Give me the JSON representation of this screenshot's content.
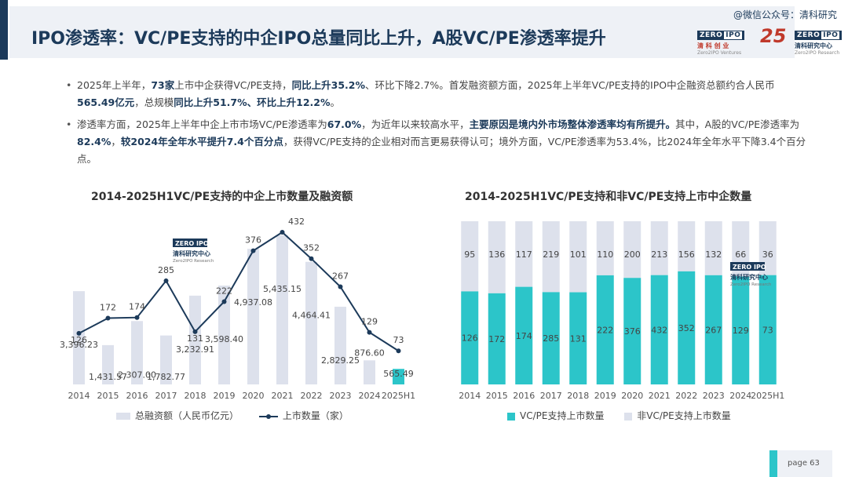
{
  "header": {
    "title": "IPO渗透率：VC/PE支持的中企IPO总量同比上升，A股VC/PE渗透率提升",
    "watermark": "@微信公众号：清科研究",
    "logo1_brand": "ZERO",
    "logo1_ipo": "IPO",
    "logo1_cn": "清 科 创 业",
    "logo1_en": "Zero2IPO Ventures",
    "logo_25": "25",
    "logo2_brand": "ZERO",
    "logo2_ipo": "IPO",
    "logo2_cn": "清科研究中心",
    "logo2_en": "Zero2IPO Research"
  },
  "bullets": [
    {
      "segments": [
        {
          "t": "2025年上半年，",
          "b": false
        },
        {
          "t": "73家",
          "b": true
        },
        {
          "t": "上市中企获得VC/PE支持，",
          "b": false
        },
        {
          "t": "同比上升35.2%",
          "b": true
        },
        {
          "t": "、环比下降2.7%。首发融资额方面，2025年上半年VC/PE支持的IPO中企融资总额约合人民币",
          "b": false
        },
        {
          "t": "565.49亿元",
          "b": true
        },
        {
          "t": "，总规模",
          "b": false
        },
        {
          "t": "同比上升51.7%、环比上升12.2%",
          "b": true
        },
        {
          "t": "。",
          "b": false
        }
      ]
    },
    {
      "segments": [
        {
          "t": "渗透率方面，2025年上半年中企上市市场VC/PE渗透率为",
          "b": false
        },
        {
          "t": "67.0%",
          "b": true
        },
        {
          "t": "，为近年以来较高水平，",
          "b": false
        },
        {
          "t": "主要原因是境内外市场整体渗透率均有所提升。",
          "b": true
        },
        {
          "t": "其中，A股的VC/PE渗透率为",
          "b": false
        },
        {
          "t": "82.4%",
          "b": true
        },
        {
          "t": "，",
          "b": false
        },
        {
          "t": "较2024年全年水平提升7.4个百分点",
          "b": true
        },
        {
          "t": "，获得VC/PE支持的企业相对而言更易获得认可；境外方面，VC/PE渗透率为53.4%，比2024年全年水平下降3.4个百分点。",
          "b": false
        }
      ]
    }
  ],
  "chart_data": [
    {
      "type": "bar",
      "title": "2014-2025H1VC/PE支持的中企上市数量及融资额",
      "categories": [
        "2014",
        "2015",
        "2016",
        "2017",
        "2018",
        "2019",
        "2020",
        "2021",
        "2022",
        "2023",
        "2024",
        "2025H1"
      ],
      "series": [
        {
          "name": "总融资额（人民币亿元）",
          "kind": "bar",
          "values": [
            3396.23,
            1431.57,
            2307.0,
            1782.77,
            3232.91,
            3598.4,
            4937.08,
            5435.15,
            4464.41,
            2829.25,
            876.6,
            565.49
          ],
          "labels": [
            "3,396.23",
            "1,431.57",
            "2,307.00",
            "1,782.77",
            "3,232.91",
            "3,598.40",
            "4,937.08",
            "5,435.15",
            "4,464.41",
            "2,829.25",
            "876.60",
            "565.49"
          ],
          "color": "#dde1ec",
          "highlight_last_color": "#2cc5c9"
        },
        {
          "name": "上市数量（家）",
          "kind": "line",
          "values": [
            126,
            172,
            174,
            285,
            131,
            222,
            376,
            432,
            352,
            267,
            129,
            73
          ],
          "color": "#1c3a5a"
        }
      ],
      "legend_position": "bottom",
      "watermark": {
        "brand": "ZERO",
        "ipo": "IPO",
        "cn": "清科研究中心",
        "en": "Zero2IPO Research"
      }
    },
    {
      "type": "bar",
      "stacked": "100%",
      "title": "2014-2025H1VC/PE支持和非VC/PE支持上市中企数量",
      "categories": [
        "2014",
        "2015",
        "2016",
        "2017",
        "2018",
        "2019",
        "2020",
        "2021",
        "2022",
        "2023",
        "2024",
        "2025H1"
      ],
      "series": [
        {
          "name": "VC/PE支持上市数量",
          "values": [
            126,
            172,
            174,
            285,
            131,
            222,
            376,
            432,
            352,
            267,
            129,
            73
          ],
          "color": "#2cc5c9"
        },
        {
          "name": "非VC/PE支持上市数量",
          "values": [
            95,
            136,
            117,
            219,
            101,
            110,
            200,
            213,
            156,
            132,
            66,
            36
          ],
          "color": "#dde1ec"
        }
      ],
      "legend_position": "bottom",
      "watermark": {
        "brand": "ZERO",
        "ipo": "IPO",
        "cn": "清科研究中心",
        "en": "Zero2IPO Research"
      }
    }
  ],
  "footer": {
    "page_label": "page   63"
  }
}
